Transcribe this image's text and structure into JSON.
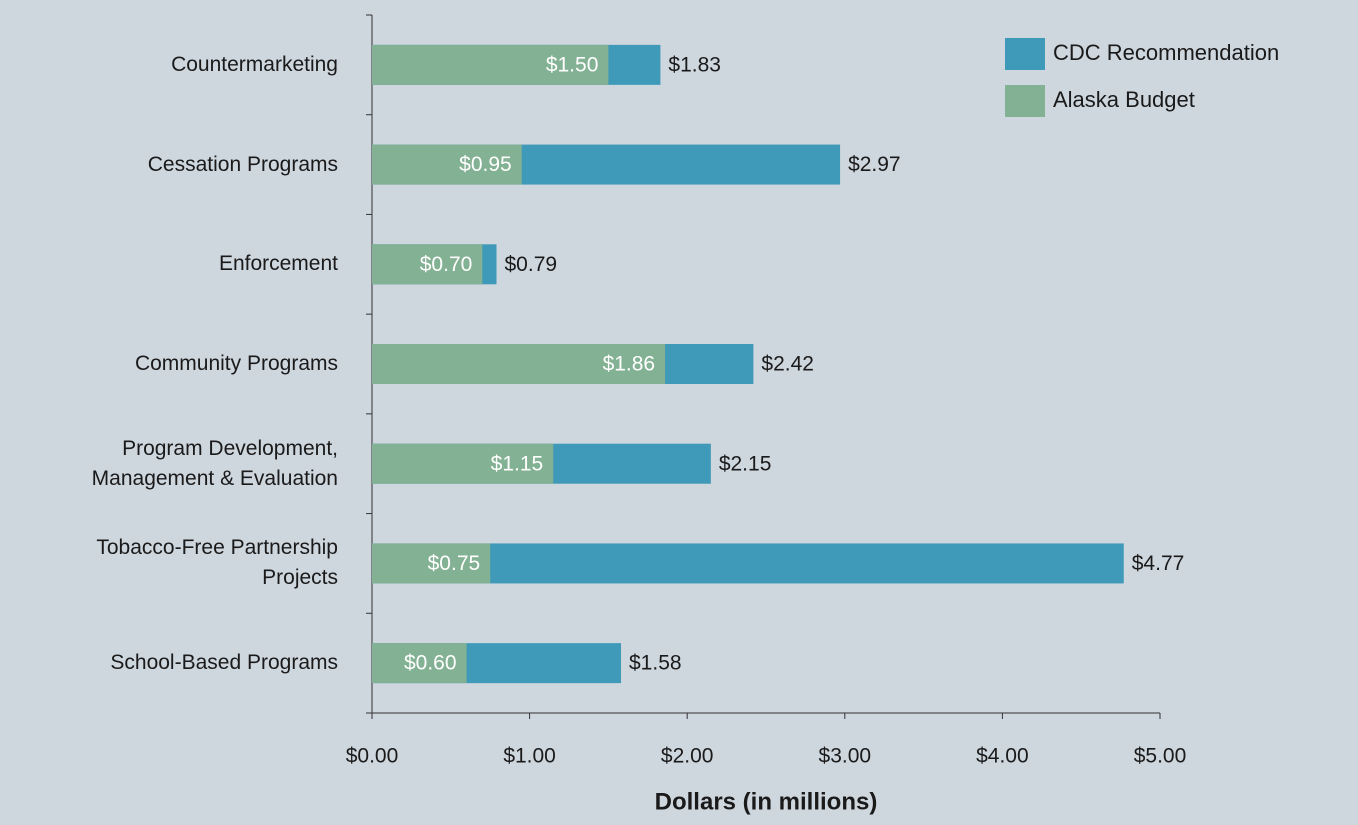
{
  "chart_data": {
    "type": "bar",
    "orientation": "horizontal",
    "overlap": true,
    "x_label": "Dollars (in millions)",
    "categories": [
      "Countermarketing",
      "Cessation Programs",
      "Enforcement",
      "Community Programs",
      "Program Development, Management & Evaluation",
      "Tobacco-Free Partnership Projects",
      "School-Based Programs"
    ],
    "series": [
      {
        "name": "CDC Recommendation",
        "color": "#3f99b8",
        "values": [
          1.83,
          2.97,
          0.79,
          2.42,
          2.15,
          4.77,
          1.58
        ],
        "value_labels": [
          "$1.83",
          "$2.97",
          "$0.79",
          "$2.42",
          "$2.15",
          "$4.77",
          "$1.58"
        ]
      },
      {
        "name": "Alaska Budget",
        "color": "#83b193",
        "values": [
          1.5,
          0.95,
          0.7,
          1.86,
          1.15,
          0.75,
          0.6
        ],
        "value_labels": [
          "$1.50",
          "$0.95",
          "$0.70",
          "$1.86",
          "$1.15",
          "$0.75",
          "$0.60"
        ]
      }
    ],
    "xlim": [
      0,
      5
    ],
    "xticks": [
      {
        "value": 0,
        "label": "$0.00"
      },
      {
        "value": 1,
        "label": "$1.00"
      },
      {
        "value": 2,
        "label": "$2.00"
      },
      {
        "value": 3,
        "label": "$3.00"
      },
      {
        "value": 4,
        "label": "$4.00"
      },
      {
        "value": 5,
        "label": "$5.00"
      }
    ],
    "legend": "top-right"
  }
}
